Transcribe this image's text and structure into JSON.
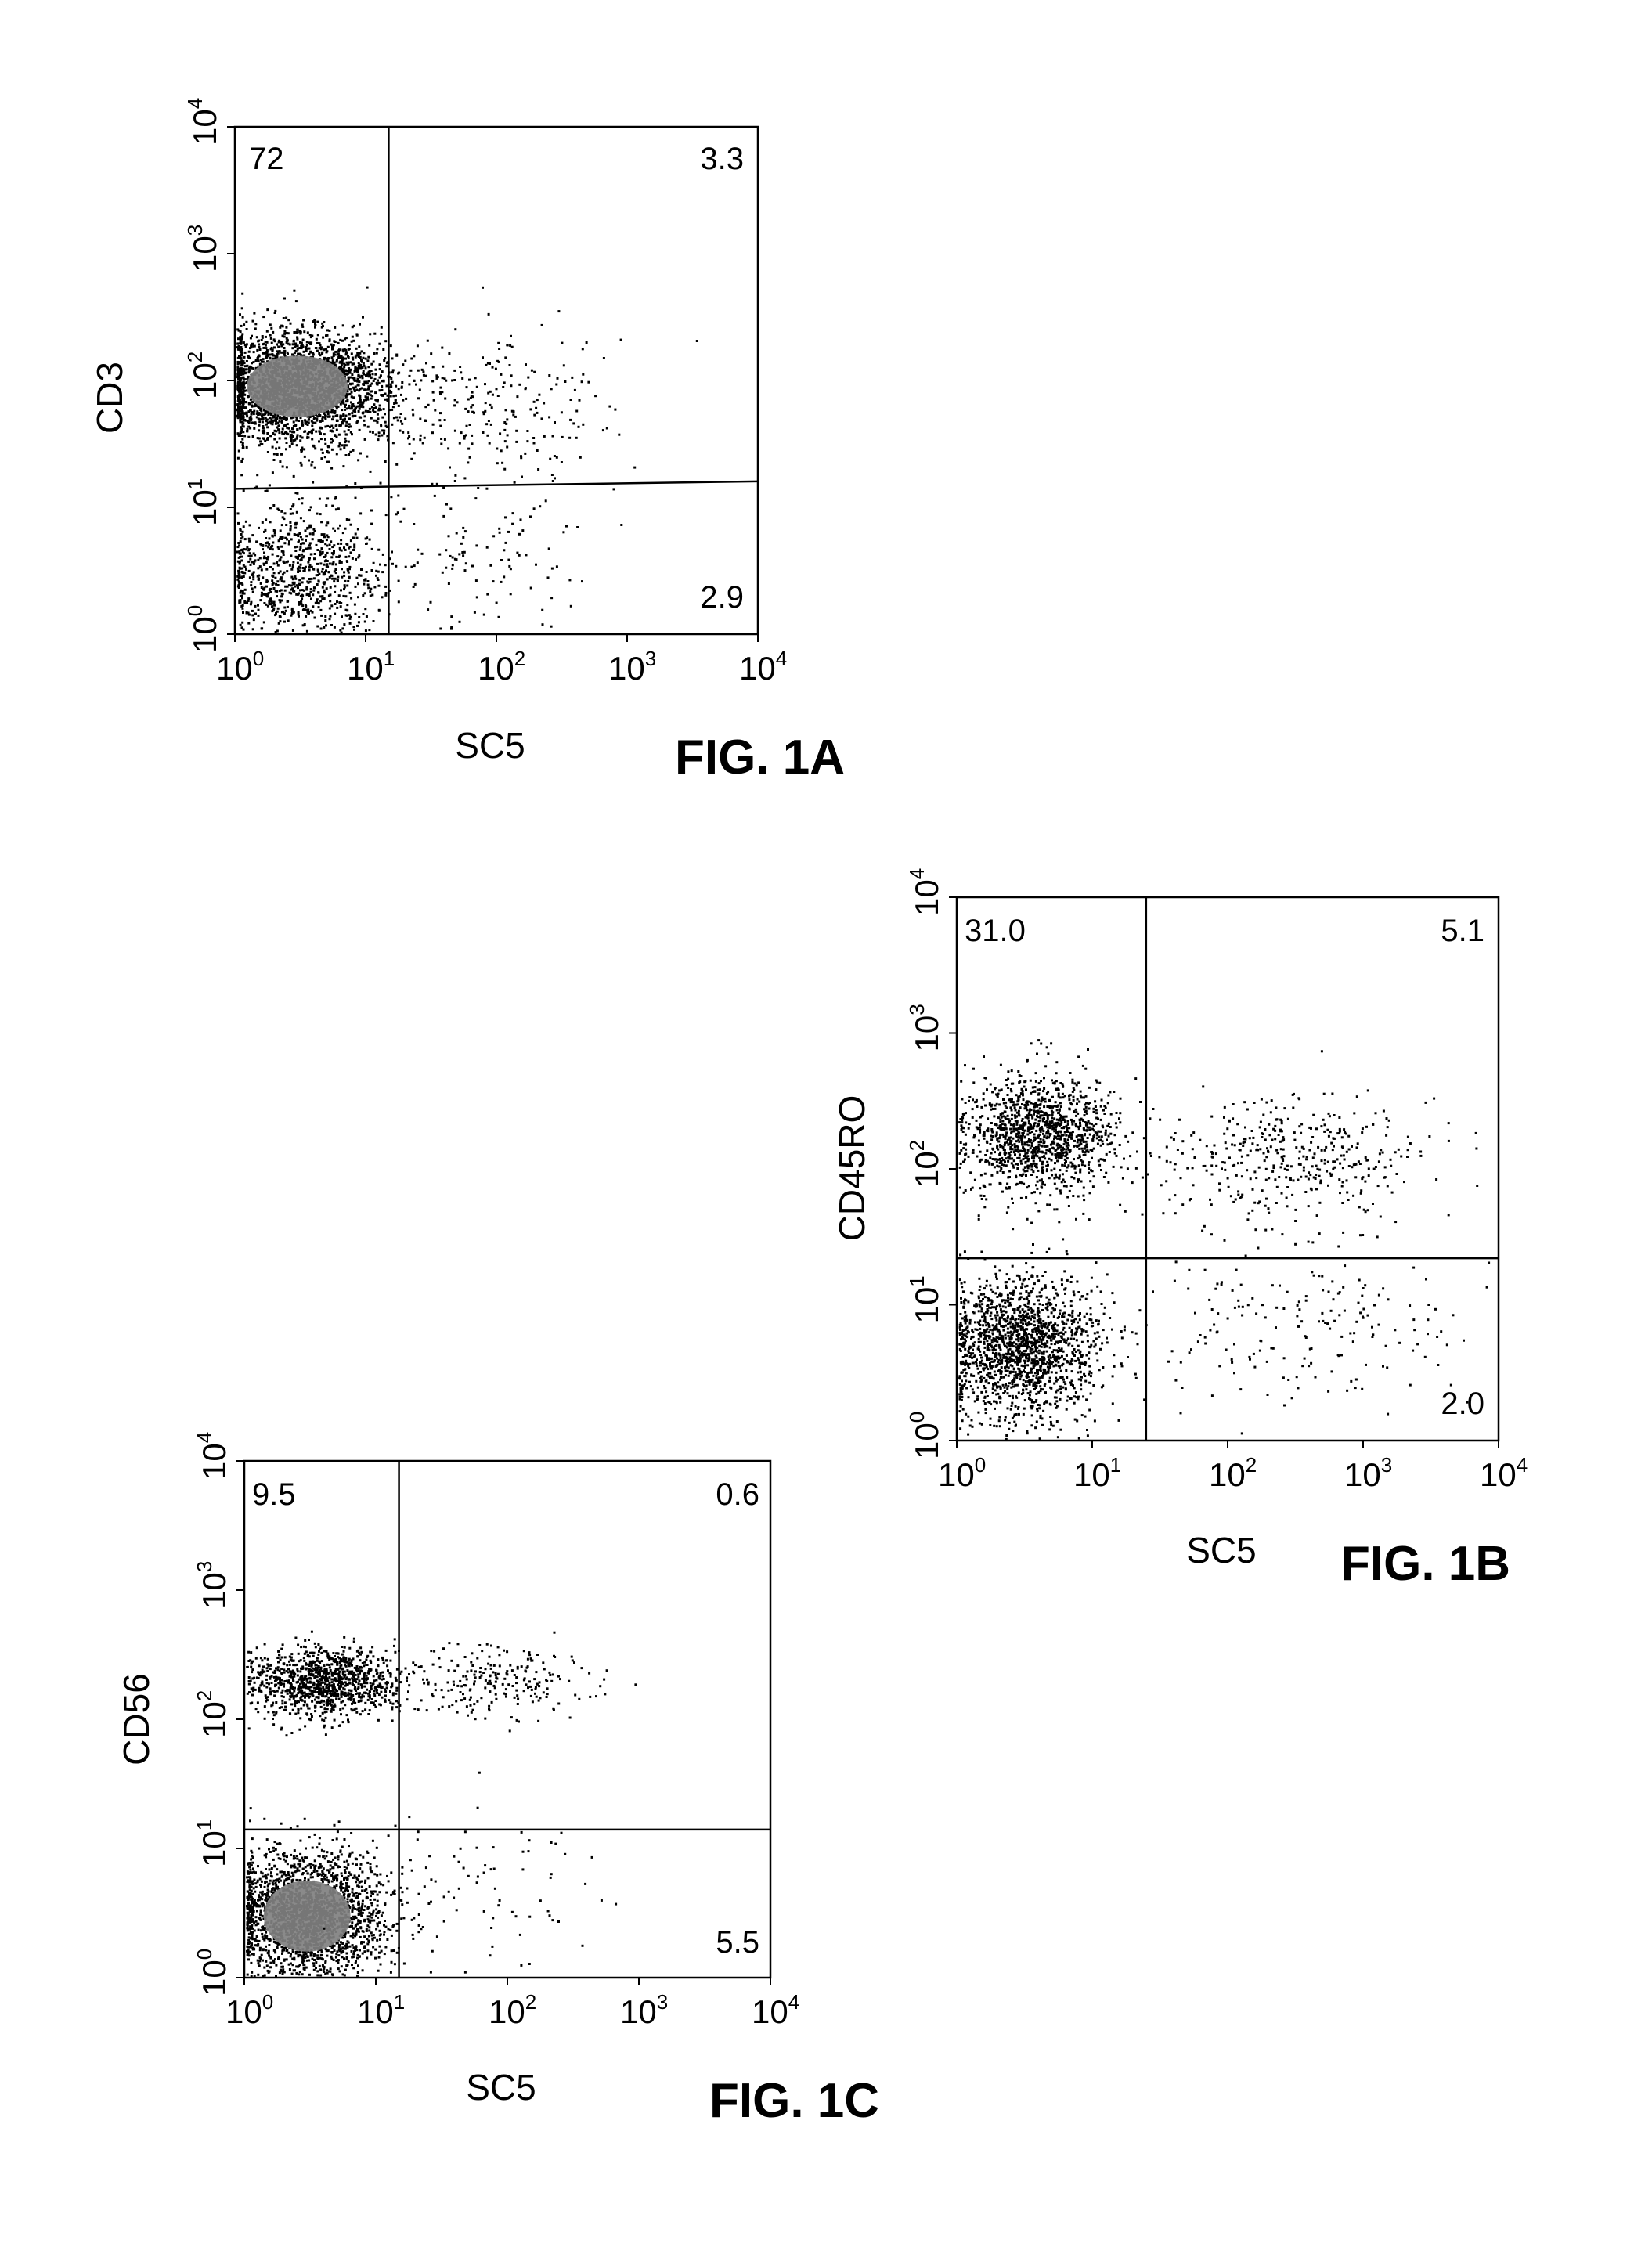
{
  "colors": {
    "ink": "#000000",
    "dense_core": "#808080",
    "background": "#ffffff"
  },
  "chart_data": [
    {
      "type": "scatter",
      "caption": "FIG. 1A",
      "xlabel": "SC5",
      "ylabel": "CD3",
      "xscale": "log",
      "yscale": "log",
      "xlim": [
        1,
        10000
      ],
      "ylim": [
        1,
        10000
      ],
      "x_ticks": [
        {
          "base": "10",
          "exp": "0"
        },
        {
          "base": "10",
          "exp": "1"
        },
        {
          "base": "10",
          "exp": "2"
        },
        {
          "base": "10",
          "exp": "3"
        },
        {
          "base": "10",
          "exp": "4"
        }
      ],
      "y_ticks": [
        {
          "base": "10",
          "exp": "0"
        },
        {
          "base": "10",
          "exp": "1"
        },
        {
          "base": "10",
          "exp": "2"
        },
        {
          "base": "10",
          "exp": "3"
        },
        {
          "base": "10",
          "exp": "4"
        }
      ],
      "gates": {
        "x": 15,
        "y_left": 14,
        "y_right": 16
      },
      "quadrant_percentages": {
        "upper_left": "72",
        "upper_right": "3.3",
        "lower_right": "2.9"
      },
      "populations": [
        {
          "name": "",
          "center": [
            3,
            90
          ],
          "spread": [
            0.35,
            0.22
          ],
          "count": 2600,
          "dense_core": true
        },
        {
          "name": "",
          "center": [
            3,
            3
          ],
          "spread": [
            0.35,
            0.28
          ],
          "count": 900,
          "dense_core": false
        },
        {
          "name": "",
          "center": [
            80,
            60
          ],
          "spread": [
            0.45,
            0.3
          ],
          "count": 260,
          "dense_core": false
        },
        {
          "name": "",
          "center": [
            60,
            4
          ],
          "spread": [
            0.5,
            0.35
          ],
          "count": 110,
          "dense_core": false
        }
      ],
      "grid": false,
      "legend": "none"
    },
    {
      "type": "scatter",
      "caption": "FIG. 1B",
      "xlabel": "SC5",
      "ylabel": "CD45RO",
      "xscale": "log",
      "yscale": "log",
      "xlim": [
        1,
        10000
      ],
      "ylim": [
        1,
        10000
      ],
      "x_ticks": [
        {
          "base": "10",
          "exp": "0"
        },
        {
          "base": "10",
          "exp": "1"
        },
        {
          "base": "10",
          "exp": "2"
        },
        {
          "base": "10",
          "exp": "3"
        },
        {
          "base": "10",
          "exp": "4"
        }
      ],
      "y_ticks": [
        {
          "base": "10",
          "exp": "0"
        },
        {
          "base": "10",
          "exp": "1"
        },
        {
          "base": "10",
          "exp": "2"
        },
        {
          "base": "10",
          "exp": "3"
        },
        {
          "base": "10",
          "exp": "4"
        }
      ],
      "gates": {
        "x": 25,
        "y_left": 22,
        "y_right": 22
      },
      "quadrant_percentages": {
        "upper_left": "31.0",
        "upper_right": "5.1",
        "lower_right": "2.0"
      },
      "populations": [
        {
          "name": "",
          "center": [
            4,
            180
          ],
          "spread": [
            0.28,
            0.22
          ],
          "count": 1300,
          "dense_core": false
        },
        {
          "name": "",
          "center": [
            3,
            5
          ],
          "spread": [
            0.28,
            0.25
          ],
          "count": 1700,
          "dense_core": false
        },
        {
          "name": "",
          "center": [
            300,
            120
          ],
          "spread": [
            0.55,
            0.22
          ],
          "count": 420,
          "dense_core": false
        },
        {
          "name": "",
          "center": [
            400,
            8
          ],
          "spread": [
            0.6,
            0.35
          ],
          "count": 200,
          "dense_core": false
        }
      ],
      "grid": false,
      "legend": "none"
    },
    {
      "type": "scatter",
      "caption": "FIG. 1C",
      "xlabel": "SC5",
      "ylabel": "CD56",
      "xscale": "log",
      "yscale": "log",
      "xlim": [
        1,
        10000
      ],
      "ylim": [
        1,
        10000
      ],
      "x_ticks": [
        {
          "base": "10",
          "exp": "0"
        },
        {
          "base": "10",
          "exp": "1"
        },
        {
          "base": "10",
          "exp": "2"
        },
        {
          "base": "10",
          "exp": "3"
        },
        {
          "base": "10",
          "exp": "4"
        }
      ],
      "y_ticks": [
        {
          "base": "10",
          "exp": "0"
        },
        {
          "base": "10",
          "exp": "1"
        },
        {
          "base": "10",
          "exp": "2"
        },
        {
          "base": "10",
          "exp": "3"
        },
        {
          "base": "10",
          "exp": "4"
        }
      ],
      "gates": {
        "x": 15,
        "y_left": 14,
        "y_right": 14
      },
      "quadrant_percentages": {
        "upper_left": "9.5",
        "upper_right": "0.6",
        "lower_right": "5.5"
      },
      "populations": [
        {
          "name": "",
          "center": [
            4,
            200
          ],
          "spread": [
            0.28,
            0.14
          ],
          "count": 1100,
          "dense_core": false
        },
        {
          "name": "",
          "center": [
            3,
            3
          ],
          "spread": [
            0.3,
            0.25
          ],
          "count": 2200,
          "dense_core": true
        },
        {
          "name": "",
          "center": [
            100,
            200
          ],
          "spread": [
            0.4,
            0.14
          ],
          "count": 230,
          "dense_core": false
        },
        {
          "name": "",
          "center": [
            60,
            5
          ],
          "spread": [
            0.45,
            0.3
          ],
          "count": 80,
          "dense_core": false
        }
      ],
      "grid": false,
      "legend": "none"
    }
  ]
}
